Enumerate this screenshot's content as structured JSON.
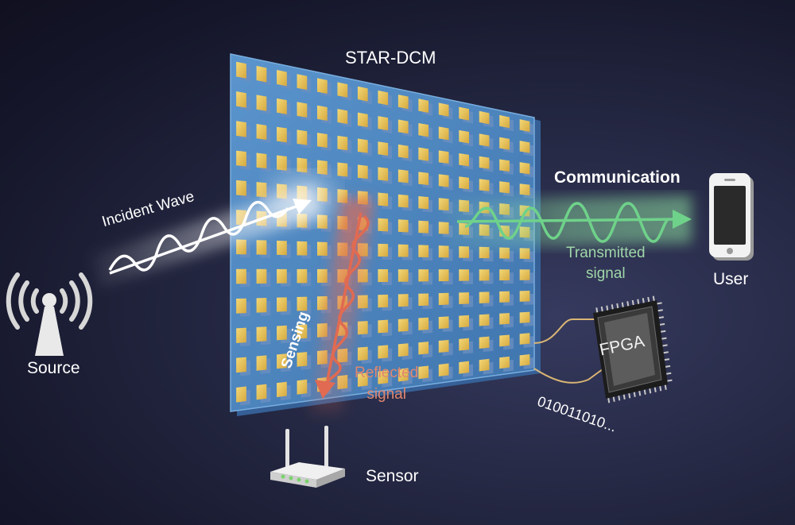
{
  "labels": {
    "source": "Source",
    "metasurface": "STAR-DCM",
    "incident_wave": "Incident Wave",
    "communication": "Communication",
    "transmitted_line1": "Transmitted",
    "transmitted_line2": "signal",
    "user": "User",
    "sensing": "Sensing",
    "reflected_line1": "Reflected",
    "reflected_line2": "signal",
    "sensor": "Sensor",
    "bitstream": "010011010...",
    "controller": "FPGA"
  },
  "colors": {
    "metasurface": "#4f88c2",
    "unit_cell": "#e6c25a",
    "transmitted": "#6fd28a",
    "reflected": "#e06a52",
    "incident": "#ffffff"
  },
  "icons": [
    "antenna-icon",
    "smartphone-icon",
    "router-icon",
    "fpga-chip-icon"
  ]
}
